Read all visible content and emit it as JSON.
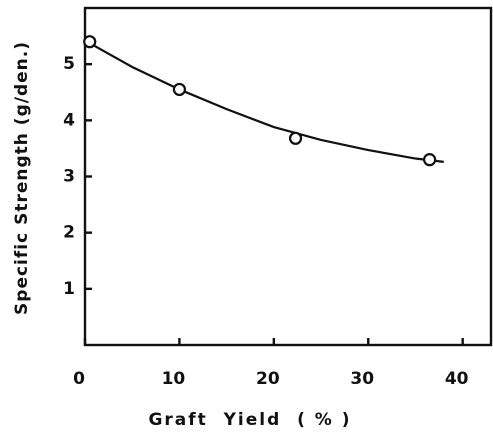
{
  "chart_data": {
    "type": "scatter",
    "xlabel": "Graft  Yield  ( % )",
    "ylabel": "Specific Strength (g/den.)",
    "xlim": [
      0,
      43
    ],
    "ylim": [
      0,
      6
    ],
    "xticks": [
      0,
      10,
      20,
      30,
      40
    ],
    "yticks": [
      1,
      2,
      3,
      4,
      5
    ],
    "color": "#111111",
    "series": [
      {
        "type": "scatter",
        "x": [
          0.5,
          10,
          22.3,
          36.5
        ],
        "values": [
          5.4,
          4.55,
          3.68,
          3.3
        ]
      },
      {
        "type": "line",
        "x": [
          0,
          5,
          10,
          15,
          20,
          25,
          30,
          35,
          38
        ],
        "values": [
          5.42,
          4.95,
          4.55,
          4.2,
          3.88,
          3.65,
          3.47,
          3.32,
          3.26
        ]
      }
    ]
  }
}
